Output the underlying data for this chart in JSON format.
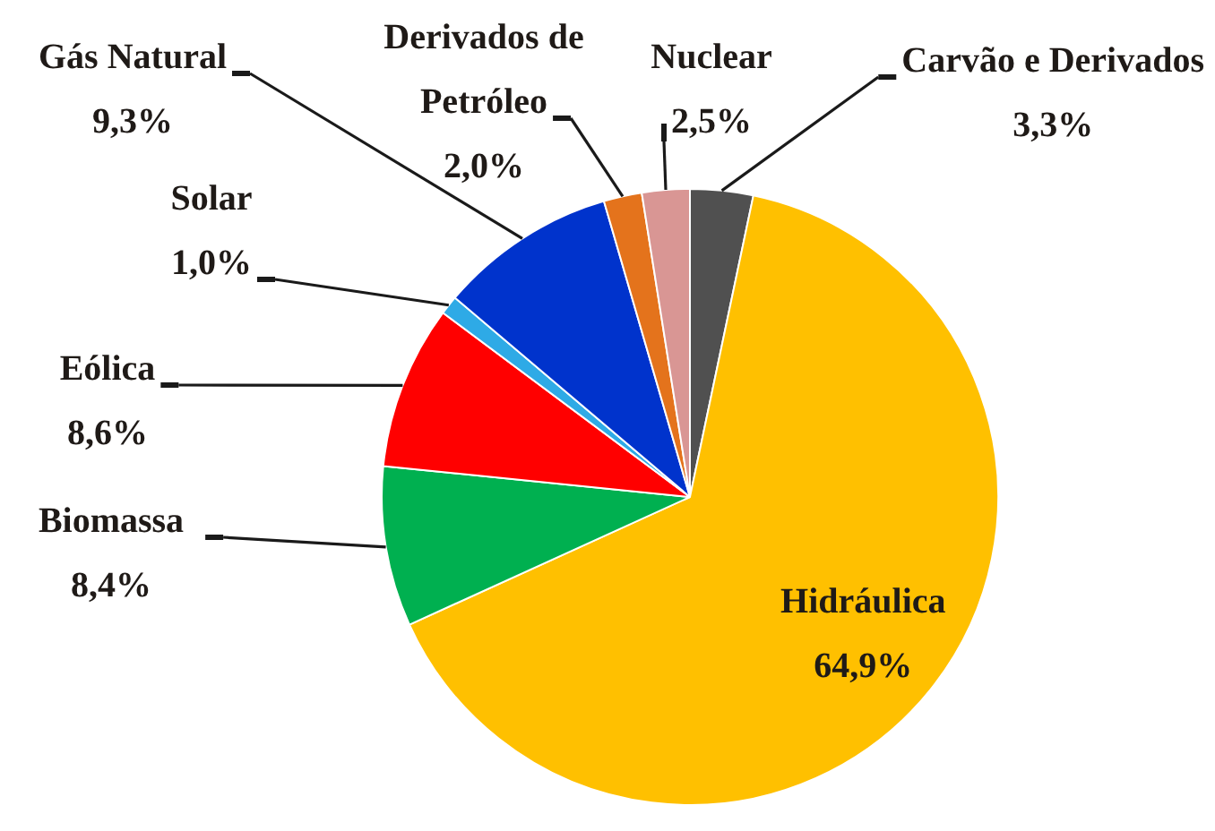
{
  "chart_data": {
    "type": "pie",
    "categories": [
      "Carvão e Derivados",
      "Hidráulica",
      "Biomassa",
      "Eólica",
      "Solar",
      "Gás Natural",
      "Derivados de Petróleo",
      "Nuclear"
    ],
    "values": [
      3.3,
      64.9,
      8.4,
      8.6,
      1.0,
      9.3,
      2.0,
      2.5
    ],
    "colors": [
      "#505050",
      "#ffc000",
      "#00b050",
      "#ff0000",
      "#2eaae6",
      "#0033cc",
      "#e4731c",
      "#d99694"
    ],
    "value_labels": [
      "3,3%",
      "64,9%",
      "8,4%",
      "8,6%",
      "1,0%",
      "9,3%",
      "2,0%",
      "2,5%"
    ],
    "legend": false
  }
}
